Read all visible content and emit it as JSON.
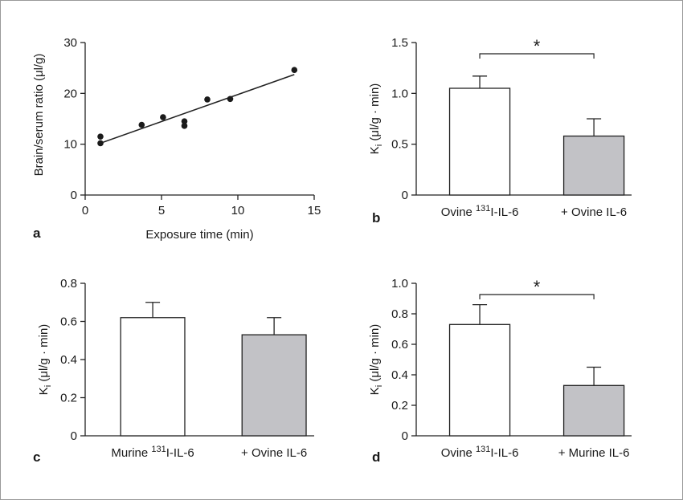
{
  "chart_data": [
    {
      "type": "scatter",
      "panel_label": "a",
      "xlabel": "Exposure time (min)",
      "ylabel": "Brain/serum ratio (μl/g)",
      "xlim": [
        0,
        15
      ],
      "ylim": [
        0,
        30
      ],
      "xticks": [
        "0",
        "5",
        "10",
        "15"
      ],
      "yticks": [
        "0",
        "10",
        "20",
        "30"
      ],
      "points": [
        {
          "x": 1.0,
          "y": 11.5
        },
        {
          "x": 1.0,
          "y": 10.2
        },
        {
          "x": 3.7,
          "y": 13.8
        },
        {
          "x": 5.1,
          "y": 15.3
        },
        {
          "x": 6.5,
          "y": 14.5
        },
        {
          "x": 6.5,
          "y": 13.6
        },
        {
          "x": 8.0,
          "y": 18.8
        },
        {
          "x": 9.5,
          "y": 18.9
        },
        {
          "x": 13.7,
          "y": 24.6
        }
      ],
      "fit_line": {
        "x": [
          1.0,
          13.7
        ],
        "y": [
          10.2,
          23.7
        ]
      }
    },
    {
      "type": "bar",
      "panel_label": "b",
      "ylabel": "Ki (μl/g · min)",
      "ylim": [
        0,
        1.5
      ],
      "yticks": [
        "0",
        "0.5",
        "1.0",
        "1.5"
      ],
      "categories": [
        {
          "pre": "Ovine ",
          "sup": "131",
          "post": "I-IL-6"
        },
        {
          "pre": "+ Ovine IL-6",
          "sup": "",
          "post": ""
        }
      ],
      "values": [
        1.05,
        0.58
      ],
      "errors": [
        0.12,
        0.17
      ],
      "colors": [
        "#ffffff",
        "#c2c2c6"
      ],
      "significance": "*"
    },
    {
      "type": "bar",
      "panel_label": "c",
      "ylabel": "Ki (μl/g · min)",
      "ylim": [
        0,
        0.8
      ],
      "yticks": [
        "0",
        "0.2",
        "0.4",
        "0.6",
        "0.8"
      ],
      "categories": [
        {
          "pre": "Murine ",
          "sup": "131",
          "post": "I-IL-6"
        },
        {
          "pre": "+ Ovine IL-6",
          "sup": "",
          "post": ""
        }
      ],
      "values": [
        0.62,
        0.53
      ],
      "errors": [
        0.08,
        0.09
      ],
      "colors": [
        "#ffffff",
        "#c2c2c6"
      ],
      "significance": ""
    },
    {
      "type": "bar",
      "panel_label": "d",
      "ylabel": "Ki (μl/g · min)",
      "ylim": [
        0,
        1.0
      ],
      "yticks": [
        "0",
        "0.2",
        "0.4",
        "0.6",
        "0.8",
        "1.0"
      ],
      "categories": [
        {
          "pre": "Ovine ",
          "sup": "131",
          "post": "I-IL-6"
        },
        {
          "pre": "+ Murine IL-6",
          "sup": "",
          "post": ""
        }
      ],
      "values": [
        0.73,
        0.33
      ],
      "errors": [
        0.13,
        0.12
      ],
      "colors": [
        "#ffffff",
        "#c2c2c6"
      ],
      "significance": "*"
    }
  ]
}
